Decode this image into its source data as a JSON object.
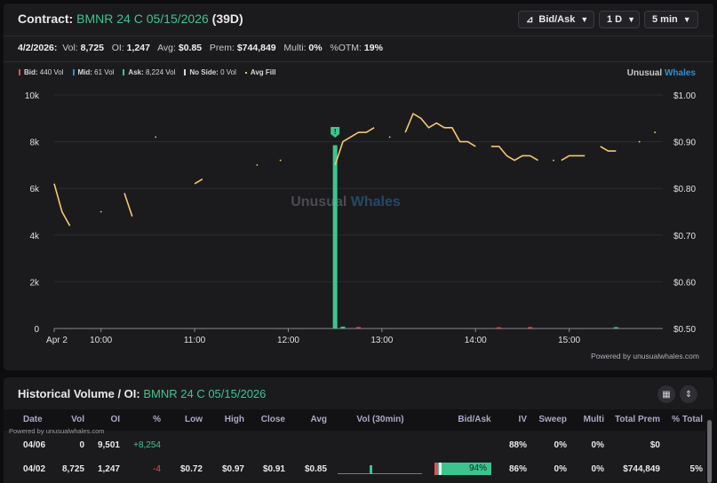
{
  "header": {
    "label": "Contract:",
    "contract": "BMNR 24 C 05/15/2026",
    "dte": "(39D)",
    "controls": [
      {
        "label": "Bid/Ask",
        "icon": "chart-icon"
      },
      {
        "label": "1 D"
      },
      {
        "label": "5 min"
      }
    ]
  },
  "stats": {
    "date": "4/2/2026:",
    "vol_label": "Vol:",
    "vol": "8,725",
    "oi_label": "OI:",
    "oi": "1,247",
    "avg_label": "Avg:",
    "avg": "$0.85",
    "prem_label": "Prem:",
    "prem": "$744,849",
    "multi_label": "Multi:",
    "multi": "0%",
    "otm_label": "%OTM:",
    "otm": "19%"
  },
  "legend": [
    {
      "label": "Bid:",
      "value": "440 Vol",
      "color": "#e0505a"
    },
    {
      "label": "Mid:",
      "value": "61 Vol",
      "color": "#2e8fd0"
    },
    {
      "label": "Ask:",
      "value": "8,224 Vol",
      "color": "#3dc48e"
    },
    {
      "label": "No Side:",
      "value": "0 Vol",
      "color": "#d8d8dc"
    },
    {
      "label": "Avg Fill",
      "value": "",
      "color": "#f5c86a"
    }
  ],
  "brand": {
    "a": "Unusual",
    "b": "Whales"
  },
  "watermark": {
    "a": "Unusual",
    "b": "Whales"
  },
  "powered": "Powered by unusualwhales.com",
  "chart_data": {
    "type": "bar+line",
    "x_tick_labels": [
      "Apr 2",
      "10:00",
      "11:00",
      "12:00",
      "13:00",
      "14:00",
      "15:00"
    ],
    "x_ticks_min": [
      0,
      30,
      90,
      150,
      210,
      270,
      330
    ],
    "y_left_ticks": [
      "0",
      "2k",
      "4k",
      "6k",
      "8k",
      "10k"
    ],
    "y_left_lim": [
      0,
      10000
    ],
    "y_right_ticks": [
      "$0.50",
      "$0.60",
      "$0.70",
      "$0.80",
      "$0.90",
      "$1.00"
    ],
    "y_right_lim": [
      0.5,
      1.0
    ],
    "x_lim_min": [
      0,
      390
    ],
    "volume_bars": [
      {
        "t": 180,
        "side": "ask",
        "value": 7850
      },
      {
        "t": 185,
        "side": "ask",
        "value": 80
      },
      {
        "t": 195,
        "side": "bid",
        "value": 60
      },
      {
        "t": 285,
        "side": "bid",
        "value": 50
      },
      {
        "t": 305,
        "side": "bid",
        "value": 60
      },
      {
        "t": 360,
        "side": "ask",
        "value": 60
      }
    ],
    "marker": {
      "t": 180,
      "label": "!"
    },
    "avg_fill_segments": [
      [
        [
          0,
          0.81
        ],
        [
          5,
          0.75
        ],
        [
          10,
          0.72
        ]
      ],
      [
        [
          45,
          0.79
        ],
        [
          50,
          0.74
        ]
      ],
      [
        [
          90,
          0.81
        ],
        [
          95,
          0.82
        ]
      ],
      [
        [
          180,
          0.85
        ],
        [
          185,
          0.9
        ],
        [
          190,
          0.91
        ],
        [
          195,
          0.92
        ],
        [
          200,
          0.92
        ],
        [
          205,
          0.93
        ]
      ],
      [
        [
          225,
          0.92
        ],
        [
          230,
          0.96
        ],
        [
          235,
          0.95
        ],
        [
          240,
          0.93
        ],
        [
          245,
          0.94
        ],
        [
          250,
          0.93
        ],
        [
          255,
          0.93
        ],
        [
          260,
          0.9
        ],
        [
          265,
          0.9
        ],
        [
          270,
          0.89
        ]
      ],
      [
        [
          280,
          0.89
        ],
        [
          285,
          0.89
        ],
        [
          290,
          0.87
        ],
        [
          295,
          0.86
        ],
        [
          300,
          0.87
        ],
        [
          305,
          0.87
        ],
        [
          310,
          0.86
        ]
      ],
      [
        [
          325,
          0.86
        ],
        [
          330,
          0.87
        ],
        [
          335,
          0.87
        ],
        [
          340,
          0.87
        ]
      ],
      [
        [
          350,
          0.89
        ],
        [
          355,
          0.88
        ],
        [
          360,
          0.88
        ]
      ]
    ],
    "avg_fill_points": [
      [
        30,
        0.75
      ],
      [
        65,
        0.91
      ],
      [
        130,
        0.85
      ],
      [
        145,
        0.86
      ],
      [
        215,
        0.91
      ],
      [
        320,
        0.86
      ],
      [
        375,
        0.9
      ],
      [
        385,
        0.92
      ]
    ]
  },
  "historical": {
    "title": "Historical Volume / OI:",
    "contract": "BMNR 24 C 05/15/2026",
    "powered": "Powered by unusualwhales.com",
    "columns": [
      "Date",
      "Vol",
      "OI",
      "%",
      "Low",
      "High",
      "Close",
      "Avg",
      "Vol (30min)",
      "Bid/Ask",
      "IV",
      "Sweep",
      "Multi",
      "Total Prem",
      "% Total"
    ],
    "rows": [
      {
        "date": "04/06",
        "vol": "0",
        "oi": "9,501",
        "pct": "+8,254",
        "pct_color": "#3dc48e",
        "low": "",
        "high": "",
        "close": "",
        "avg": "",
        "bidask": "",
        "bidask_fill": 0,
        "iv": "88%",
        "sweep": "0%",
        "multi": "0%",
        "prem": "$0",
        "total": ""
      },
      {
        "date": "04/02",
        "vol": "8,725",
        "oi": "1,247",
        "pct": "-4",
        "pct_color": "#e0505a",
        "low": "$0.72",
        "high": "$0.97",
        "close": "$0.91",
        "avg": "$0.85",
        "bidask": "94%",
        "bidask_fill": 0.94,
        "iv": "86%",
        "sweep": "0%",
        "multi": "0%",
        "prem": "$744,849",
        "total": "5%"
      }
    ]
  }
}
